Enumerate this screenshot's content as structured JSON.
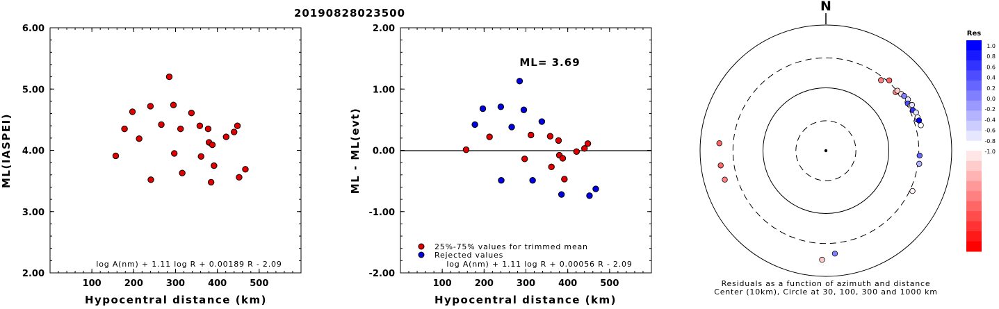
{
  "title": "20190828023500",
  "chart_data": [
    {
      "type": "scatter",
      "ylabel": "ML(IASPEI)",
      "xlabel": "Hypocentral distance (km)",
      "xlim": [
        0,
        600
      ],
      "ylim": [
        2.0,
        6.0
      ],
      "xticks": [
        "100",
        "200",
        "300",
        "400",
        "500"
      ],
      "yticks": [
        "2.00",
        "3.00",
        "4.00",
        "5.00",
        "6.00"
      ],
      "equation": "log A(nm) + 1.11 log R + 0.00189 R - 2.09",
      "series": [
        {
          "color": "#e00000",
          "points": [
            [
              157,
              3.91
            ],
            [
              178,
              4.35
            ],
            [
              197,
              4.63
            ],
            [
              213,
              4.19
            ],
            [
              240,
              4.72
            ],
            [
              241,
              3.52
            ],
            [
              266,
              4.42
            ],
            [
              285,
              5.2
            ],
            [
              295,
              4.74
            ],
            [
              297,
              3.95
            ],
            [
              312,
              4.35
            ],
            [
              316,
              3.63
            ],
            [
              338,
              4.61
            ],
            [
              358,
              4.4
            ],
            [
              361,
              3.9
            ],
            [
              378,
              4.35
            ],
            [
              380,
              4.13
            ],
            [
              385,
              3.48
            ],
            [
              388,
              4.09
            ],
            [
              392,
              3.75
            ],
            [
              421,
              4.22
            ],
            [
              440,
              4.3
            ],
            [
              448,
              4.4
            ],
            [
              452,
              3.56
            ],
            [
              467,
              3.69
            ]
          ]
        }
      ]
    },
    {
      "type": "scatter",
      "ylabel": "ML - ML(evt)",
      "xlabel": "Hypocentral distance (km)",
      "xlim": [
        0,
        600
      ],
      "ylim": [
        -2.0,
        2.0
      ],
      "xticks": [
        "100",
        "200",
        "300",
        "400",
        "500"
      ],
      "yticks": [
        "-2.00",
        "-1.00",
        "0.00",
        "1.00",
        "2.00"
      ],
      "ml_label": "ML= 3.69",
      "equation": "log A(nm) + 1.11 log R + 0.00056 R - 2.09",
      "legend": [
        {
          "label": "25%-75% values for trimmed mean",
          "color": "#e00000"
        },
        {
          "label": "Rejected values",
          "color": "#0000e0"
        }
      ],
      "series": [
        {
          "color": "#e00000",
          "points": [
            [
              157,
              0.01
            ],
            [
              213,
              0.22
            ],
            [
              297,
              -0.14
            ],
            [
              312,
              0.25
            ],
            [
              358,
              0.23
            ],
            [
              361,
              -0.27
            ],
            [
              378,
              0.16
            ],
            [
              380,
              -0.08
            ],
            [
              388,
              -0.13
            ],
            [
              392,
              -0.47
            ],
            [
              421,
              -0.02
            ],
            [
              440,
              0.03
            ],
            [
              448,
              0.11
            ]
          ]
        },
        {
          "color": "#0000e0",
          "points": [
            [
              178,
              0.42
            ],
            [
              197,
              0.68
            ],
            [
              240,
              0.71
            ],
            [
              241,
              -0.49
            ],
            [
              266,
              0.38
            ],
            [
              285,
              1.13
            ],
            [
              295,
              0.66
            ],
            [
              316,
              -0.49
            ],
            [
              338,
              0.47
            ],
            [
              385,
              -0.72
            ],
            [
              452,
              -0.74
            ],
            [
              467,
              -0.63
            ]
          ]
        }
      ]
    },
    {
      "type": "polar-scatter",
      "north_label": "N",
      "caption_line1": "Residuals as a function of azimuth and distance",
      "caption_line2": "Center (10km), Circle at 30, 100, 300 and 1000 km",
      "legend_title": "Res",
      "scale_labels": [
        "1.0",
        "0.8",
        "0.6",
        "0.4",
        "0.2",
        "0.0",
        "-0.2",
        "-0.4",
        "-0.6",
        "-0.8",
        "-1.0"
      ],
      "points": [
        {
          "az": 42,
          "dist": 320,
          "res": -0.6
        },
        {
          "az": 38,
          "dist": 265,
          "res": -0.5
        },
        {
          "az": 50,
          "dist": 280,
          "res": -0.5
        },
        {
          "az": 50,
          "dist": 305,
          "res": -0.2
        },
        {
          "az": 53,
          "dist": 315,
          "res": -0.1
        },
        {
          "az": 55,
          "dist": 330,
          "res": 0.5
        },
        {
          "az": 58,
          "dist": 345,
          "res": 0.1
        },
        {
          "az": 60,
          "dist": 318,
          "res": 0.7
        },
        {
          "az": 62,
          "dist": 335,
          "res": -0.1
        },
        {
          "az": 62,
          "dist": 355,
          "res": 0.1
        },
        {
          "az": 65,
          "dist": 335,
          "res": 0.8
        },
        {
          "az": 67,
          "dist": 360,
          "res": 0.1
        },
        {
          "az": 71,
          "dist": 340,
          "res": 0.4
        },
        {
          "az": 70,
          "dist": 355,
          "res": 0.0
        },
        {
          "az": 72,
          "dist": 360,
          "res": 1.0
        },
        {
          "az": 75,
          "dist": 365,
          "res": 0.0
        },
        {
          "az": 93,
          "dist": 310,
          "res": 0.6
        },
        {
          "az": 98,
          "dist": 315,
          "res": 0.3
        },
        {
          "az": 115,
          "dist": 330,
          "res": -0.05
        },
        {
          "az": 175,
          "dist": 440,
          "res": 0.5
        },
        {
          "az": 182,
          "dist": 545,
          "res": -0.2
        },
        {
          "az": 254,
          "dist": 470,
          "res": -0.5
        },
        {
          "az": 262,
          "dist": 488,
          "res": -0.6
        },
        {
          "az": 274,
          "dist": 498,
          "res": -0.6
        }
      ]
    }
  ]
}
